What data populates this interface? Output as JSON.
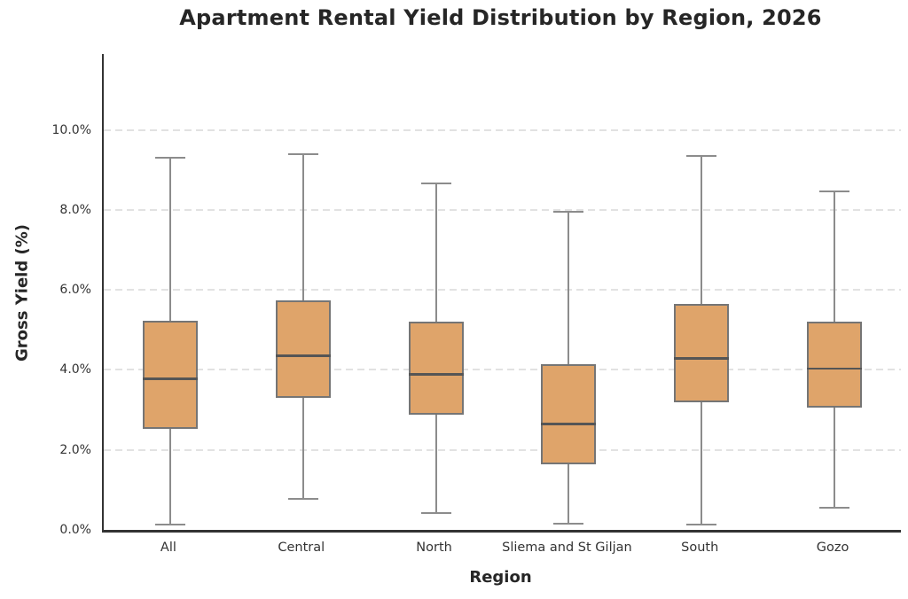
{
  "chart_data": {
    "type": "box",
    "title": "Apartment Rental Yield Distribution by Region, 2026",
    "xlabel": "Region",
    "ylabel": "Gross Yield (%)",
    "ylim": [
      0,
      11.9
    ],
    "yticks": [
      0,
      2,
      4,
      6,
      8,
      10
    ],
    "ytick_labels": [
      "0.0%",
      "2.0%",
      "4.0%",
      "6.0%",
      "8.0%",
      "10.0%"
    ],
    "grid": "horizontal-dashed",
    "legend": "none",
    "categories": [
      "All",
      "Central",
      "North",
      "Sliema and St Giljan",
      "South",
      "Gozo"
    ],
    "series": [
      {
        "category": "All",
        "whisker_low": 0.14,
        "q1": 2.52,
        "median": 3.78,
        "q3": 5.24,
        "whisker_high": 9.3
      },
      {
        "category": "Central",
        "whisker_low": 0.77,
        "q1": 3.31,
        "median": 4.36,
        "q3": 5.75,
        "whisker_high": 9.4
      },
      {
        "category": "North",
        "whisker_low": 0.41,
        "q1": 2.87,
        "median": 3.89,
        "q3": 5.21,
        "whisker_high": 8.66
      },
      {
        "category": "Sliema and St Giljan",
        "whisker_low": 0.16,
        "q1": 1.64,
        "median": 2.65,
        "q3": 4.14,
        "whisker_high": 7.96
      },
      {
        "category": "South",
        "whisker_low": 0.14,
        "q1": 3.2,
        "median": 4.29,
        "q3": 5.66,
        "whisker_high": 9.36
      },
      {
        "category": "Gozo",
        "whisker_low": 0.56,
        "q1": 3.05,
        "median": 4.04,
        "q3": 5.21,
        "whisker_high": 8.47
      }
    ],
    "colors": {
      "box_fill": "#dfa46a",
      "box_border": "#757575",
      "median": "#555555",
      "whisker": "#8c8c8c",
      "gridline": "#e2e2e2",
      "axis": "#333333",
      "background": "#ffffff"
    }
  }
}
